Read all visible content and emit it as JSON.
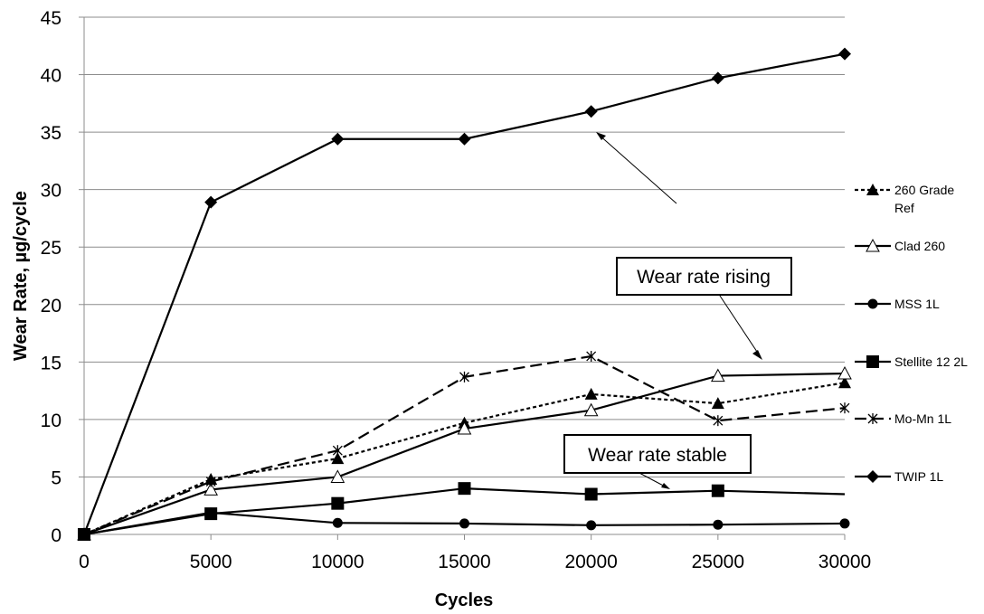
{
  "chart_data": {
    "type": "line",
    "xlabel": "Cycles",
    "ylabel": "Wear Rate, µg/cycle",
    "xlim": [
      0,
      30000
    ],
    "ylim": [
      0,
      45
    ],
    "x_ticks": [
      0,
      5000,
      10000,
      15000,
      20000,
      25000,
      30000
    ],
    "y_ticks": [
      0,
      5,
      10,
      15,
      20,
      25,
      30,
      35,
      40,
      45
    ],
    "grid": "horizontal",
    "legend_position": "right",
    "series": [
      {
        "name": "260 Grade Ref",
        "marker": "filled-triangle",
        "line": "dotted",
        "x": [
          0,
          5000,
          10000,
          15000,
          20000,
          25000,
          30000
        ],
        "values": [
          0,
          4.8,
          6.6,
          9.7,
          12.2,
          11.4,
          13.2
        ]
      },
      {
        "name": "Clad 260",
        "marker": "open-triangle",
        "line": "solid",
        "x": [
          0,
          5000,
          10000,
          15000,
          20000,
          25000,
          30000
        ],
        "values": [
          0,
          3.9,
          5.0,
          9.2,
          10.8,
          13.8,
          14.0
        ]
      },
      {
        "name": "MSS 1L",
        "marker": "circle",
        "line": "solid",
        "x": [
          0,
          5000,
          10000,
          15000,
          20000,
          25000,
          30000
        ],
        "values": [
          0,
          1.9,
          1.0,
          0.95,
          0.8,
          0.85,
          0.95
        ]
      },
      {
        "name": "Stellite 12 2L",
        "marker": "square",
        "line": "solid",
        "x": [
          0,
          5000,
          10000,
          15000,
          20000,
          25000,
          30000
        ],
        "values": [
          0,
          1.8,
          2.7,
          4.0,
          3.5,
          3.8,
          3.5
        ],
        "marker_hidden_last": true
      },
      {
        "name": "Mo-Mn 1L",
        "marker": "star",
        "line": "dashed",
        "x": [
          0,
          5000,
          10000,
          15000,
          20000,
          25000,
          30000
        ],
        "values": [
          0,
          4.6,
          7.3,
          13.7,
          15.5,
          9.9,
          11.0
        ]
      },
      {
        "name": "TWIP 1L",
        "marker": "diamond",
        "line": "solid",
        "x": [
          0,
          5000,
          10000,
          15000,
          20000,
          25000,
          30000
        ],
        "values": [
          0,
          28.9,
          34.4,
          34.4,
          36.8,
          39.7,
          41.8
        ]
      }
    ],
    "annotations": [
      {
        "text": "Wear rate rising",
        "arrow_from": [
          23000,
          35.2
        ],
        "arrow_to": [
          26800,
          15.0
        ]
      },
      {
        "text": "Wear rate stable",
        "arrow_to": [
          23000,
          3.8
        ]
      }
    ]
  }
}
